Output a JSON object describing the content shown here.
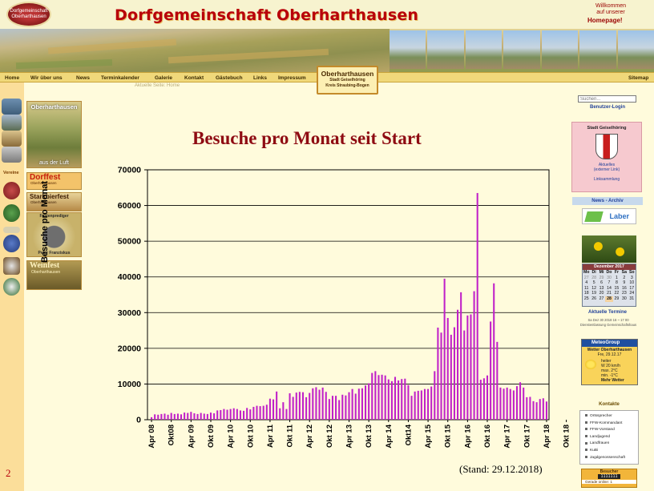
{
  "header": {
    "seal_text": "Dorfgemeinschaft Oberharthausen",
    "title": "Dorfgemeinschaft Oberharthausen",
    "welcome_line1": "Willkommen",
    "welcome_line2": "auf unserer",
    "welcome_homepage": "Homepage!"
  },
  "nav": {
    "items": [
      "Home",
      "Wir über uns",
      "News",
      "Terminkalender",
      "Galerie",
      "Kontakt",
      "Gästebuch",
      "Links",
      "Impressum"
    ],
    "sitemap": "Sitemap",
    "breadcrumb": "Aktuelle Seite: Home"
  },
  "place_box": {
    "name": "Oberharthausen",
    "line1": "Stadt Geiselhöring",
    "line2": "Kreis Straubing-Bogen"
  },
  "left": {
    "aerial_title": "Oberharthausen",
    "aerial_caption": "aus der Luft",
    "vereine": "Vereine",
    "dorffest": "Dorffest",
    "dorffest_sub": "Oberharthausen",
    "starkbier": "Starkbierfest",
    "starkbier_sub": "Oberharthausen",
    "fasten": "Fastenprediger",
    "fasten_name": "Peter Franziskus",
    "weinfest": "Weinfest",
    "weinfest_sub": "Oberharthausen"
  },
  "chart_meta": {
    "stand": "(Stand: 29.12.2018)",
    "page_number": "2"
  },
  "chart_data": {
    "type": "bar",
    "title": "Besuche pro Monat seit Start",
    "ylabel": "Besuche pro Monat",
    "xlabel": "",
    "ylim": [
      0,
      70000
    ],
    "yticks": [
      0,
      10000,
      20000,
      30000,
      40000,
      50000,
      60000,
      70000
    ],
    "grid": "horizontal",
    "color": "#c020c8",
    "start": "Apr 08",
    "tick_labels": [
      "Apr 08",
      "Okt08",
      "Apr 09",
      "Okt 09",
      "Apr 10",
      "Okt 10",
      "Apr 11",
      "Okt 11",
      "Apr 12",
      "Okt 12",
      "Apr 13",
      "Okt 13",
      "Apr 14",
      "Okt14",
      "Apr 15",
      "Okt 15",
      "Apr 16",
      "Okt 16",
      "Apr 17",
      "Okt 17",
      "Apr 18",
      "Okt 18"
    ],
    "values": [
      700,
      1500,
      1400,
      1600,
      1700,
      1400,
      1900,
      1600,
      1700,
      1500,
      2000,
      1900,
      2200,
      1800,
      1600,
      1900,
      1700,
      1600,
      2000,
      1800,
      2600,
      2700,
      3000,
      2800,
      3000,
      3200,
      3000,
      2600,
      2500,
      3300,
      2900,
      3600,
      3900,
      3800,
      3900,
      4200,
      5900,
      5700,
      7900,
      3200,
      4900,
      3000,
      7400,
      6400,
      7600,
      7800,
      7700,
      6300,
      7500,
      8800,
      9100,
      8400,
      9000,
      7800,
      5800,
      6700,
      6700,
      5500,
      7000,
      6800,
      7700,
      8600,
      7300,
      8700,
      8800,
      9600,
      10200,
      13100,
      13600,
      12500,
      12600,
      12400,
      11300,
      10800,
      12000,
      11000,
      11400,
      11500,
      9700,
      6700,
      7900,
      8100,
      8200,
      8600,
      8600,
      9300,
      13600,
      25800,
      24400,
      39500,
      28500,
      23800,
      25900,
      30800,
      35700,
      25000,
      29200,
      29500,
      36000,
      63500,
      11200,
      11600,
      12400,
      27500,
      38200,
      21800,
      9000,
      8700,
      9000,
      8600,
      8200,
      9400,
      10500,
      9000,
      6300,
      6400,
      5200,
      4900,
      5800,
      6000,
      5100
    ]
  },
  "right": {
    "search_placeholder": "Suchen...",
    "login": "Benutzer-Login",
    "city_box": "Stadt Geiselhöring",
    "city_link1": "Aktuelles",
    "city_link2": "(externer Link)",
    "link_collection": "Linksammlung",
    "news_archive": "News - Archiv",
    "laber_brand": "Laber",
    "calendar_title": "Dezember 2017",
    "calendar_days": [
      "Mo",
      "Di",
      "Mi",
      "Do",
      "Fr",
      "Sa",
      "So"
    ],
    "calendar_cells": [
      "27",
      "28",
      "29",
      "30",
      "1",
      "2",
      "3",
      "4",
      "5",
      "6",
      "7",
      "8",
      "9",
      "10",
      "11",
      "12",
      "13",
      "14",
      "15",
      "16",
      "17",
      "18",
      "19",
      "20",
      "21",
      "22",
      "23",
      "24",
      "25",
      "26",
      "27",
      "28",
      "29",
      "30",
      "31"
    ],
    "termine_title": "Aktuelle Termine",
    "termin_text": "Sa Dez 30 2018 16 ~ 17 00",
    "termin_text2": "Dienstentlassung Gemeinschaftshaus",
    "meteo_brand": "MeteoGroup",
    "weather_place": "Wetter Oberharthausen",
    "weather_date": "Fre, 29.12.17",
    "weather_state": "heiter",
    "weather_wind": "W 20 km/h",
    "weather_max": "max.  2°C",
    "weather_min": "min.  -1°C",
    "weather_more": "Mehr Wetter",
    "contacts_title": "Kontakte",
    "contacts": [
      "Ortssprecher",
      "FFW-Kommandant",
      "FFW-Vorstand",
      "Landjugend",
      "Landfrauen",
      "KuBi",
      "Jagdgenossenschaft"
    ],
    "visitor_label": "Besucher",
    "visitor_count": "1111111",
    "online_label": "Gerade online:",
    "online_count": "1"
  }
}
